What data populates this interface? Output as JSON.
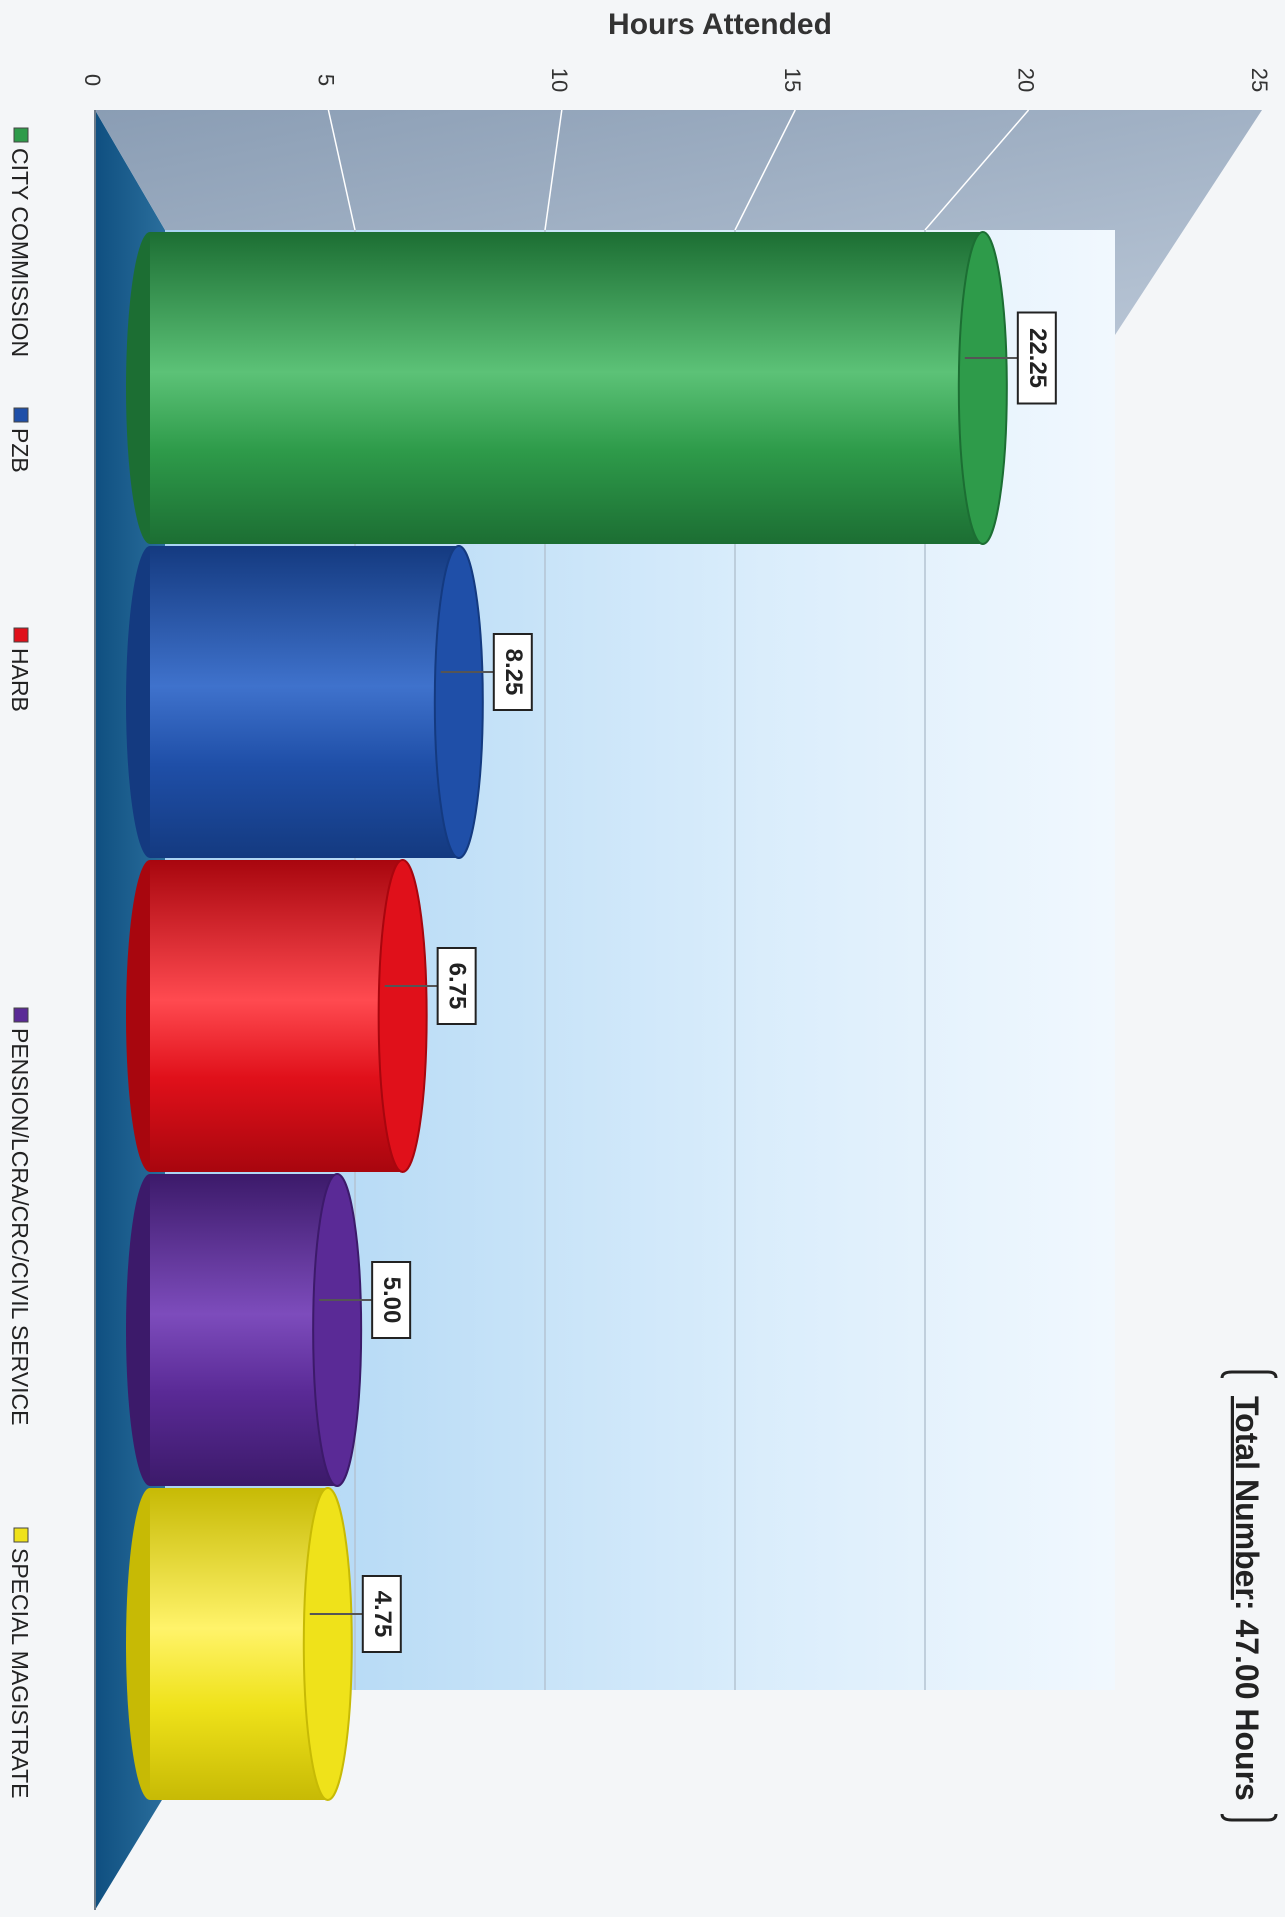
{
  "chart_data": {
    "type": "bar",
    "orientation": "horizontal",
    "style": "3d-cylinder",
    "axis_label": "Hours Attended",
    "xlim": [
      0,
      25
    ],
    "ticks": [
      "0",
      "5",
      "10",
      "15",
      "20",
      "25"
    ],
    "grid": true,
    "legend_position": "left",
    "total": {
      "label": "Total Number",
      "value_text": ": 47.00 Hours"
    },
    "categories": [
      "CITY COMMISSION",
      "PZB",
      "HARB",
      "PENSION/LCRA/CRC/CIVIL SERVICE",
      "SPECIAL MAGISTRATE"
    ],
    "values": [
      22.25,
      8.25,
      6.75,
      5.0,
      4.75
    ],
    "value_labels": [
      "22.25",
      "8.25",
      "6.75",
      "5.00",
      "4.75"
    ],
    "colors": [
      "#2e9b4a",
      "#1f4fa8",
      "#e0101a",
      "#5a2a96",
      "#efe21a"
    ],
    "colors_light": [
      "#5cc277",
      "#3f72cc",
      "#ff4a50",
      "#7d4cbc",
      "#fff36a"
    ],
    "colors_dark": [
      "#1c6e33",
      "#143a80",
      "#a8060e",
      "#3c1a6a",
      "#c7ba05"
    ]
  }
}
